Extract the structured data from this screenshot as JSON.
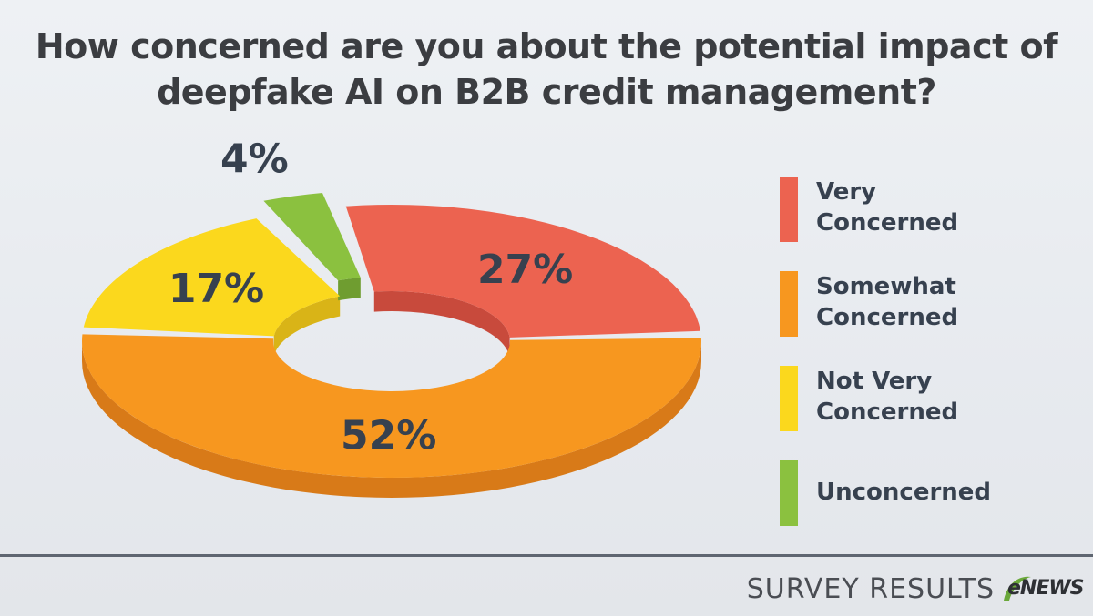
{
  "title": {
    "line1": "How concerned are you about the potential impact of",
    "line2": "deepfake AI on B2B credit management?"
  },
  "chart_data": {
    "type": "pie",
    "style": "3d-donut",
    "title": "How concerned are you about the potential impact of deepfake AI on B2B credit management?",
    "categories": [
      "Very Concerned",
      "Somewhat Concerned",
      "Not Very Concerned",
      "Unconcerned"
    ],
    "values": [
      27,
      52,
      17,
      4
    ],
    "labels": [
      "27%",
      "52%",
      "17%",
      "4%"
    ],
    "colors": [
      "#ec6350",
      "#f7971f",
      "#fbd81d",
      "#8bc13f"
    ],
    "side_colors": [
      "#c84a3c",
      "#d87a18",
      "#d9b417",
      "#6f9d30"
    ],
    "legend_position": "right",
    "exploded": "Unconcerned"
  },
  "legend": {
    "items": [
      {
        "line1": "Very",
        "line2": "Concerned",
        "color": "#ec6350"
      },
      {
        "line1": "Somewhat",
        "line2": "Concerned",
        "color": "#f7971f"
      },
      {
        "line1": "Not Very",
        "line2": "Concerned",
        "color": "#fbd81d"
      },
      {
        "line1": "Unconcerned",
        "line2": "",
        "color": "#8bc13f"
      }
    ]
  },
  "footer": {
    "text": "SURVEY RESULTS",
    "logo_text": "eNEWS",
    "logo_accent": "#6aa83a"
  }
}
